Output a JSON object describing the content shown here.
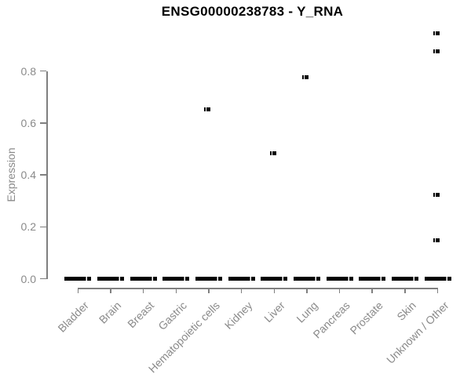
{
  "chart_data": {
    "type": "boxplot",
    "title": "ENSG00000238783 - Y_RNA",
    "xlabel": "",
    "ylabel": "Expression",
    "ylim": [
      0,
      0.97
    ],
    "yticks": [
      "0.0",
      "0.2",
      "0.4",
      "0.6",
      "0.8"
    ],
    "grid": false,
    "legend": "none",
    "point_color": "#000000",
    "axis_color": "#7f7f7f",
    "label_color": "#8a8a8a",
    "categories": [
      "Bladder",
      "Brain",
      "Breast",
      "Gastric",
      "Hematopoietic cells",
      "Kidney",
      "Liver",
      "Lung",
      "Pancreas",
      "Prostate",
      "Skin",
      "Unknown / Other"
    ],
    "boxes": [
      {
        "category": "Bladder",
        "median": 0,
        "q1": 0,
        "q3": 0,
        "whisker_low": 0,
        "whisker_high": 0,
        "outliers": []
      },
      {
        "category": "Brain",
        "median": 0,
        "q1": 0,
        "q3": 0,
        "whisker_low": 0,
        "whisker_high": 0,
        "outliers": []
      },
      {
        "category": "Breast",
        "median": 0,
        "q1": 0,
        "q3": 0,
        "whisker_low": 0,
        "whisker_high": 0,
        "outliers": []
      },
      {
        "category": "Gastric",
        "median": 0,
        "q1": 0,
        "q3": 0,
        "whisker_low": 0,
        "whisker_high": 0,
        "outliers": []
      },
      {
        "category": "Hematopoietic cells",
        "median": 0,
        "q1": 0,
        "q3": 0,
        "whisker_low": 0,
        "whisker_high": 0,
        "outliers": [
          0.653
        ]
      },
      {
        "category": "Kidney",
        "median": 0,
        "q1": 0,
        "q3": 0,
        "whisker_low": 0,
        "whisker_high": 0,
        "outliers": []
      },
      {
        "category": "Liver",
        "median": 0,
        "q1": 0,
        "q3": 0,
        "whisker_low": 0,
        "whisker_high": 0,
        "outliers": [
          0.485
        ]
      },
      {
        "category": "Lung",
        "median": 0,
        "q1": 0,
        "q3": 0,
        "whisker_low": 0,
        "whisker_high": 0,
        "outliers": [
          0.777
        ]
      },
      {
        "category": "Pancreas",
        "median": 0,
        "q1": 0,
        "q3": 0,
        "whisker_low": 0,
        "whisker_high": 0,
        "outliers": []
      },
      {
        "category": "Prostate",
        "median": 0,
        "q1": 0,
        "q3": 0,
        "whisker_low": 0,
        "whisker_high": 0,
        "outliers": []
      },
      {
        "category": "Skin",
        "median": 0,
        "q1": 0,
        "q3": 0,
        "whisker_low": 0,
        "whisker_high": 0,
        "outliers": []
      },
      {
        "category": "Unknown / Other",
        "median": 0,
        "q1": 0,
        "q3": 0,
        "whisker_low": 0,
        "whisker_high": 0,
        "outliers": [
          0.947,
          0.877,
          0.325,
          0.15
        ]
      }
    ]
  }
}
